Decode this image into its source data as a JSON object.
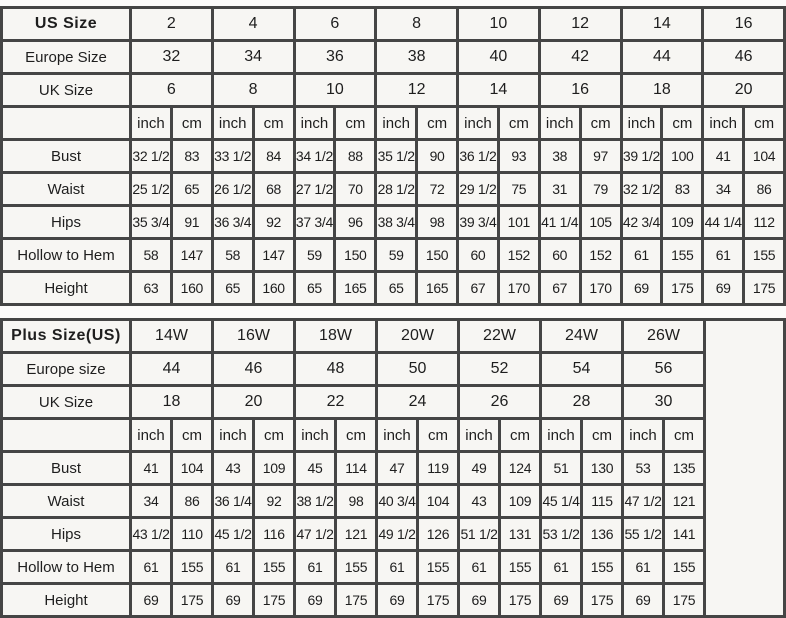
{
  "styles": {
    "border_color": "#454545",
    "cell_bg": "#f7f6f3",
    "page_bg": "#fcfbfa",
    "text_color": "#1e1e1e"
  },
  "tables": [
    {
      "id": "standard-table",
      "name": "standard-size-table",
      "trailing_empty_column": false,
      "size_rows": [
        {
          "label": "US Size",
          "bold": true,
          "values": [
            "2",
            "4",
            "6",
            "8",
            "10",
            "12",
            "14",
            "16"
          ]
        },
        {
          "label": "Europe Size",
          "bold": false,
          "values": [
            "32",
            "34",
            "36",
            "38",
            "40",
            "42",
            "44",
            "46"
          ]
        },
        {
          "label": "UK Size",
          "bold": false,
          "values": [
            "6",
            "8",
            "10",
            "12",
            "14",
            "16",
            "18",
            "20"
          ]
        }
      ],
      "unit_row": {
        "label": "",
        "values": [
          "inch",
          "cm",
          "inch",
          "cm",
          "inch",
          "cm",
          "inch",
          "cm",
          "inch",
          "cm",
          "inch",
          "cm",
          "inch",
          "cm",
          "inch",
          "cm"
        ]
      },
      "measure_rows": [
        {
          "label": "Bust",
          "values": [
            "32 1/2",
            "83",
            "33 1/2",
            "84",
            "34 1/2",
            "88",
            "35 1/2",
            "90",
            "36 1/2",
            "93",
            "38",
            "97",
            "39 1/2",
            "100",
            "41",
            "104"
          ]
        },
        {
          "label": "Waist",
          "values": [
            "25 1/2",
            "65",
            "26 1/2",
            "68",
            "27 1/2",
            "70",
            "28 1/2",
            "72",
            "29 1/2",
            "75",
            "31",
            "79",
            "32 1/2",
            "83",
            "34",
            "86"
          ]
        },
        {
          "label": "Hips",
          "values": [
            "35 3/4",
            "91",
            "36 3/4",
            "92",
            "37 3/4",
            "96",
            "38 3/4",
            "98",
            "39 3/4",
            "101",
            "41 1/4",
            "105",
            "42 3/4",
            "109",
            "44 1/4",
            "112"
          ]
        },
        {
          "label": "Hollow to Hem",
          "values": [
            "58",
            "147",
            "58",
            "147",
            "59",
            "150",
            "59",
            "150",
            "60",
            "152",
            "60",
            "152",
            "61",
            "155",
            "61",
            "155"
          ]
        },
        {
          "label": "Height",
          "values": [
            "63",
            "160",
            "65",
            "160",
            "65",
            "165",
            "65",
            "165",
            "67",
            "170",
            "67",
            "170",
            "69",
            "175",
            "69",
            "175"
          ]
        }
      ]
    },
    {
      "id": "plus-table",
      "name": "plus-size-table",
      "trailing_empty_column": true,
      "size_rows": [
        {
          "label": "Plus Size(US)",
          "bold": true,
          "values": [
            "14W",
            "16W",
            "18W",
            "20W",
            "22W",
            "24W",
            "26W"
          ]
        },
        {
          "label": "Europe size",
          "bold": false,
          "values": [
            "44",
            "46",
            "48",
            "50",
            "52",
            "54",
            "56"
          ]
        },
        {
          "label": "UK Size",
          "bold": false,
          "values": [
            "18",
            "20",
            "22",
            "24",
            "26",
            "28",
            "30"
          ]
        }
      ],
      "unit_row": {
        "label": "",
        "values": [
          "inch",
          "cm",
          "inch",
          "cm",
          "inch",
          "cm",
          "inch",
          "cm",
          "inch",
          "cm",
          "inch",
          "cm",
          "inch",
          "cm"
        ]
      },
      "measure_rows": [
        {
          "label": "Bust",
          "values": [
            "41",
            "104",
            "43",
            "109",
            "45",
            "114",
            "47",
            "119",
            "49",
            "124",
            "51",
            "130",
            "53",
            "135"
          ]
        },
        {
          "label": "Waist",
          "values": [
            "34",
            "86",
            "36 1/4",
            "92",
            "38 1/2",
            "98",
            "40 3/4",
            "104",
            "43",
            "109",
            "45 1/4",
            "115",
            "47 1/2",
            "121"
          ]
        },
        {
          "label": "Hips",
          "values": [
            "43 1/2",
            "110",
            "45 1/2",
            "116",
            "47 1/2",
            "121",
            "49 1/2",
            "126",
            "51 1/2",
            "131",
            "53 1/2",
            "136",
            "55 1/2",
            "141"
          ]
        },
        {
          "label": "Hollow to Hem",
          "values": [
            "61",
            "155",
            "61",
            "155",
            "61",
            "155",
            "61",
            "155",
            "61",
            "155",
            "61",
            "155",
            "61",
            "155"
          ]
        },
        {
          "label": "Height",
          "values": [
            "69",
            "175",
            "69",
            "175",
            "69",
            "175",
            "69",
            "175",
            "69",
            "175",
            "69",
            "175",
            "69",
            "175"
          ]
        }
      ]
    }
  ]
}
